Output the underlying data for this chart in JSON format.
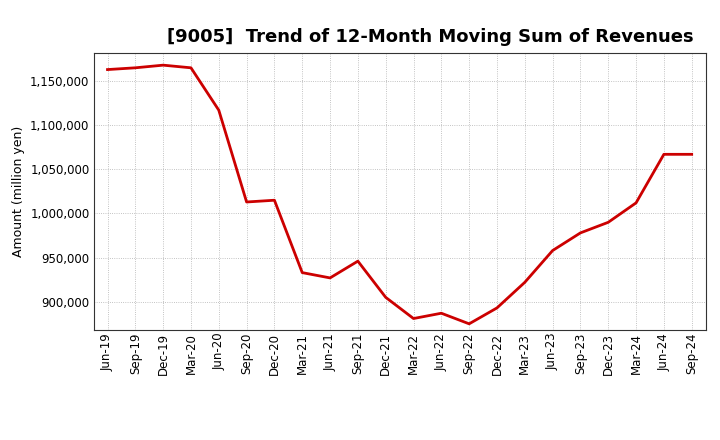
{
  "title": "[9005]  Trend of 12-Month Moving Sum of Revenues",
  "ylabel": "Amount (million yen)",
  "line_color": "#cc0000",
  "line_width": 2.0,
  "background_color": "#ffffff",
  "grid_color": "#b0b0b0",
  "xlabels": [
    "Jun-19",
    "Sep-19",
    "Dec-19",
    "Mar-20",
    "Jun-20",
    "Sep-20",
    "Dec-20",
    "Mar-21",
    "Jun-21",
    "Sep-21",
    "Dec-21",
    "Mar-22",
    "Jun-22",
    "Sep-22",
    "Dec-22",
    "Mar-23",
    "Jun-23",
    "Sep-23",
    "Dec-23",
    "Mar-24",
    "Jun-24",
    "Sep-24"
  ],
  "values": [
    1163000,
    1165000,
    1168000,
    1165000,
    1117000,
    1013000,
    1015000,
    933000,
    927000,
    946000,
    905000,
    881000,
    887000,
    875000,
    893000,
    922000,
    958000,
    978000,
    990000,
    1012000,
    1067000,
    1067000
  ],
  "ylim": [
    868000,
    1182000
  ],
  "yticks": [
    900000,
    950000,
    1000000,
    1050000,
    1100000,
    1150000
  ],
  "title_fontsize": 13,
  "ylabel_fontsize": 9,
  "tick_fontsize": 8.5
}
